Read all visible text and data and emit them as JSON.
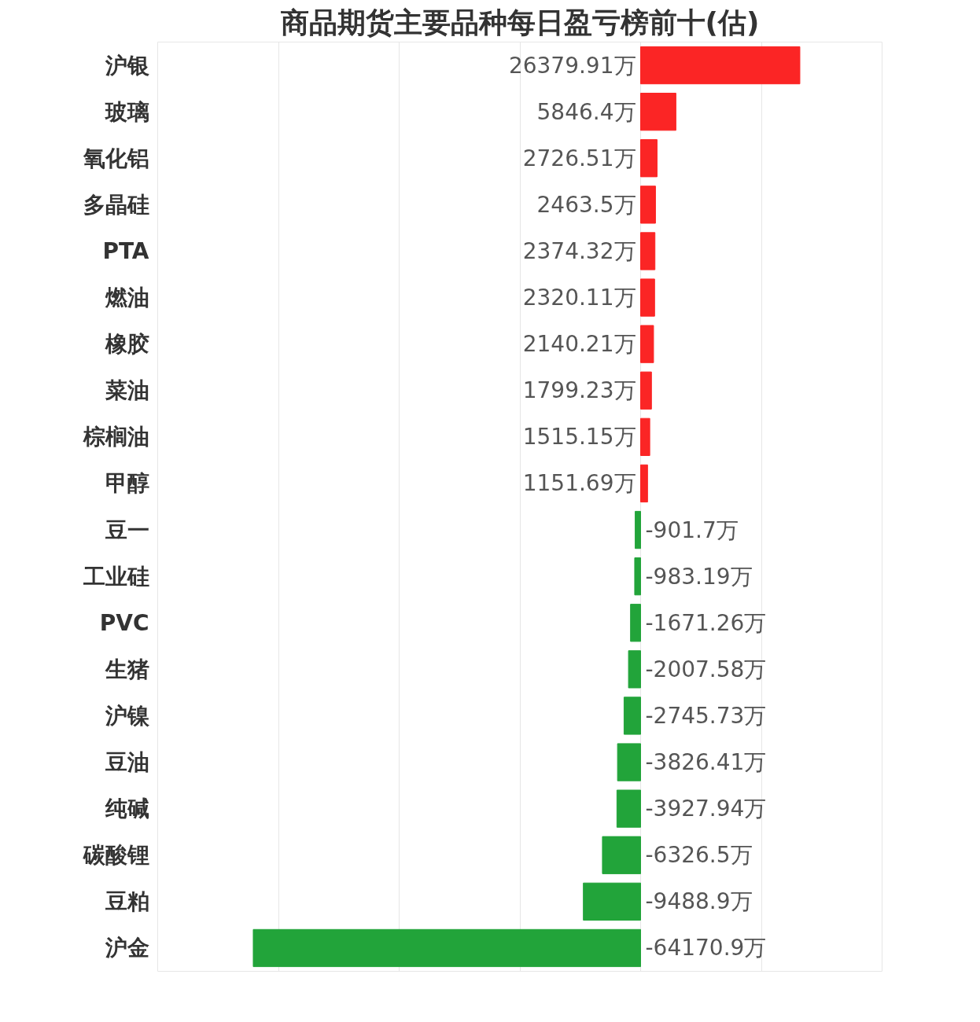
{
  "chart_data": {
    "type": "bar",
    "orientation": "horizontal",
    "title": "商品期货主要品种每日盈亏榜前十(估)",
    "categories": [
      "沪银",
      "玻璃",
      "氧化铝",
      "多晶硅",
      "PTA",
      "燃油",
      "橡胶",
      "菜油",
      "棕榈油",
      "甲醇",
      "豆一",
      "工业硅",
      "PVC",
      "生猪",
      "沪镍",
      "豆油",
      "纯碱",
      "碳酸锂",
      "豆粕",
      "沪金"
    ],
    "values": [
      26379.91,
      5846.4,
      2726.51,
      2463.5,
      2374.32,
      2320.11,
      2140.21,
      1799.23,
      1515.15,
      1151.69,
      -901.7,
      -983.19,
      -1671.26,
      -2007.58,
      -2745.73,
      -3826.41,
      -3927.94,
      -6326.5,
      -9488.9,
      -64170.9
    ],
    "value_labels": [
      "26379.91万",
      "5846.4万",
      "2726.51万",
      "2463.5万",
      "2374.32万",
      "2320.11万",
      "2140.21万",
      "1799.23万",
      "1515.15万",
      "1151.69万",
      "-901.7万",
      "-983.19万",
      "-1671.26万",
      "-2007.58万",
      "-2745.73万",
      "-3826.41万",
      "-3927.94万",
      "-6326.5万",
      "-9488.9万",
      "-64170.9万"
    ],
    "colors": [
      "#fb2525",
      "#fb2525",
      "#fb2525",
      "#fb2525",
      "#fb2525",
      "#fb2525",
      "#fb2525",
      "#fb2525",
      "#fb2525",
      "#fb2525",
      "#22a43a",
      "#22a43a",
      "#22a43a",
      "#22a43a",
      "#22a43a",
      "#22a43a",
      "#22a43a",
      "#22a43a",
      "#22a43a",
      "#22a43a"
    ],
    "xlim": [
      -80000,
      40000
    ],
    "xticks": [
      {
        "value": -60000,
        "label": null
      },
      {
        "value": -40000,
        "label": null
      },
      {
        "value": -20000,
        "label": null
      },
      {
        "value": 0,
        "label": null
      },
      {
        "value": 20000,
        "label": null
      },
      {
        "value": 40000,
        "label": null
      }
    ],
    "grid": "x",
    "tick_labels": "y"
  }
}
